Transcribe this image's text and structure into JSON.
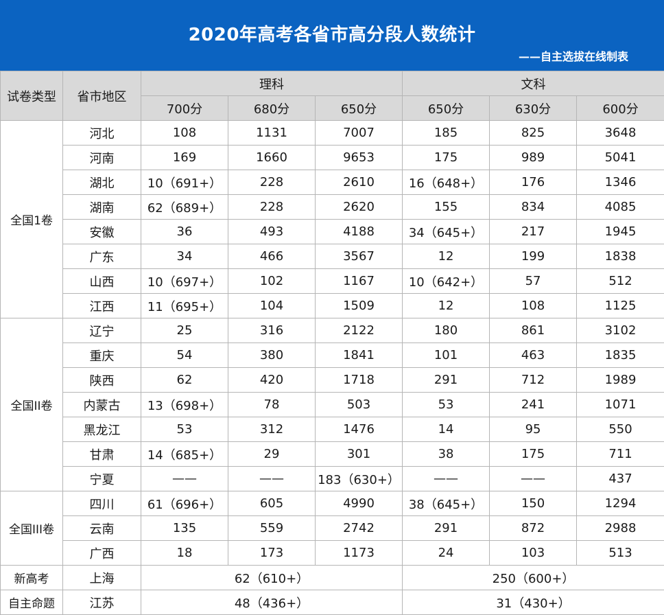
{
  "title": "2020年高考各省市高分段人数统计",
  "subtitle": "——自主选拔在线制表",
  "header": {
    "col_type": "试卷类型",
    "col_region": "省市地区",
    "science": "理科",
    "arts": "文科",
    "science_scores": [
      "700分",
      "680分",
      "650分"
    ],
    "arts_scores": [
      "650分",
      "630分",
      "600分"
    ]
  },
  "groups": [
    {
      "name": "全国1卷",
      "rows": [
        {
          "region": "河北",
          "cells": [
            "108",
            "1131",
            "7007",
            "185",
            "825",
            "3648"
          ]
        },
        {
          "region": "河南",
          "cells": [
            "169",
            "1660",
            "9653",
            "175",
            "989",
            "5041"
          ]
        },
        {
          "region": "湖北",
          "cells": [
            "10（691+）",
            "228",
            "2610",
            "16（648+）",
            "176",
            "1346"
          ]
        },
        {
          "region": "湖南",
          "cells": [
            "62（689+）",
            "228",
            "2620",
            "155",
            "834",
            "4085"
          ]
        },
        {
          "region": "安徽",
          "cells": [
            "36",
            "493",
            "4188",
            "34（645+）",
            "217",
            "1945"
          ]
        },
        {
          "region": "广东",
          "cells": [
            "34",
            "466",
            "3567",
            "12",
            "199",
            "1838"
          ]
        },
        {
          "region": "山西",
          "cells": [
            "10（697+）",
            "102",
            "1167",
            "10（642+）",
            "57",
            "512"
          ]
        },
        {
          "region": "江西",
          "cells": [
            "11（695+）",
            "104",
            "1509",
            "12",
            "108",
            "1125"
          ]
        }
      ]
    },
    {
      "name": "全国II卷",
      "rows": [
        {
          "region": "辽宁",
          "cells": [
            "25",
            "316",
            "2122",
            "180",
            "861",
            "3102"
          ]
        },
        {
          "region": "重庆",
          "cells": [
            "54",
            "380",
            "1841",
            "101",
            "463",
            "1835"
          ]
        },
        {
          "region": "陕西",
          "cells": [
            "62",
            "420",
            "1718",
            "291",
            "712",
            "1989"
          ]
        },
        {
          "region": "内蒙古",
          "cells": [
            "13（698+）",
            "78",
            "503",
            "53",
            "241",
            "1071"
          ]
        },
        {
          "region": "黑龙江",
          "cells": [
            "53",
            "312",
            "1476",
            "14",
            "95",
            "550"
          ]
        },
        {
          "region": "甘肃",
          "cells": [
            "14（685+）",
            "29",
            "301",
            "38",
            "175",
            "711"
          ]
        },
        {
          "region": "宁夏",
          "cells": [
            "——",
            "——",
            "183（630+）",
            "——",
            "——",
            "437"
          ]
        }
      ]
    },
    {
      "name": "全国III卷",
      "rows": [
        {
          "region": "四川",
          "cells": [
            "61（696+）",
            "605",
            "4990",
            "38（645+）",
            "150",
            "1294"
          ]
        },
        {
          "region": "云南",
          "cells": [
            "135",
            "559",
            "2742",
            "291",
            "872",
            "2988"
          ]
        },
        {
          "region": "广西",
          "cells": [
            "18",
            "173",
            "1173",
            "24",
            "103",
            "513"
          ]
        }
      ]
    }
  ],
  "special_rows": [
    {
      "type": "新高考",
      "region": "上海",
      "science_merged": "62（610+）",
      "arts_merged": "250（600+）"
    },
    {
      "type": "自主命题",
      "region": "江苏",
      "science_merged": "48（436+）",
      "arts_merged": "31（430+）"
    }
  ]
}
